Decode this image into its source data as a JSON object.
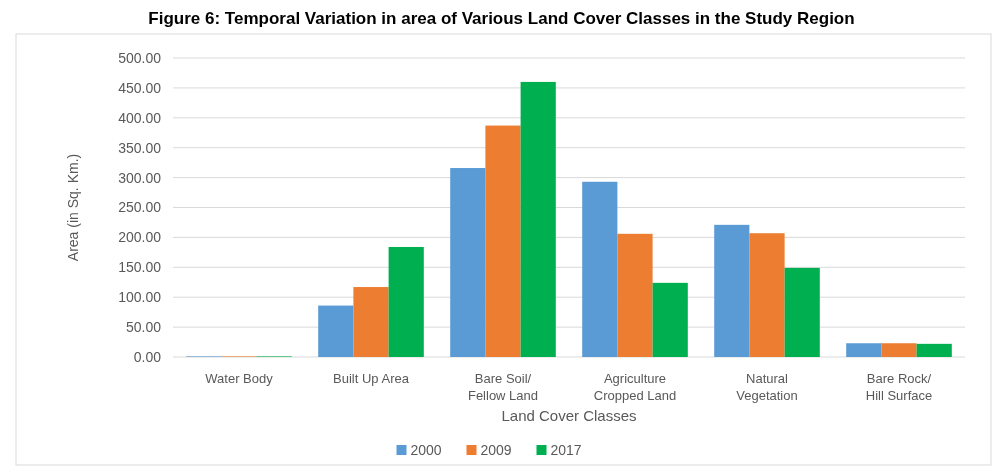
{
  "chart_data": {
    "type": "bar",
    "title": "Figure 6: Temporal Variation in area of Various Land Cover Classes in the Study Region",
    "categories": [
      "Water Body",
      "Built Up Area",
      "Bare Soil/ Fellow Land",
      "Agriculture Cropped Land",
      "Natural Vegetation",
      "Bare Rock/ Hill Surface"
    ],
    "series": [
      {
        "name": "2000",
        "color": "#5b9bd5",
        "values": [
          1,
          86,
          316,
          293,
          221,
          23
        ]
      },
      {
        "name": "2009",
        "color": "#ed7d31",
        "values": [
          1,
          117,
          387,
          206,
          207,
          23
        ]
      },
      {
        "name": "2017",
        "color": "#00b050",
        "values": [
          1,
          184,
          460,
          124,
          149,
          22
        ]
      }
    ],
    "xlabel": "Land Cover Classes",
    "ylabel": "Area (in Sq. Km.)",
    "ylim": [
      0,
      500
    ],
    "yticks": [
      {
        "value": 0,
        "label": "0.00"
      },
      {
        "value": 50,
        "label": "50.00"
      },
      {
        "value": 100,
        "label": "100.00"
      },
      {
        "value": 150,
        "label": "150.00"
      },
      {
        "value": 200,
        "label": "200.00"
      },
      {
        "value": 250,
        "label": "250.00"
      },
      {
        "value": 300,
        "label": "300.00"
      },
      {
        "value": 350,
        "label": "350.00"
      },
      {
        "value": 400,
        "label": "400.00"
      },
      {
        "value": 450,
        "label": "450.00"
      },
      {
        "value": 500,
        "label": "500.00"
      }
    ],
    "grid": "y",
    "legend": "bottom"
  }
}
